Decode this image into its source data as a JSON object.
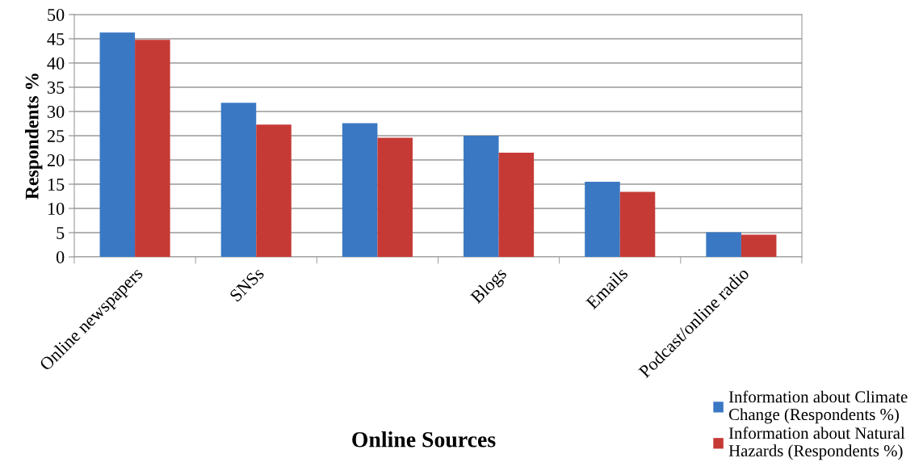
{
  "chart_data": {
    "type": "bar",
    "xlabel": "Online Sources",
    "ylabel": "Respondents %",
    "categories": [
      "Online newspapers",
      "SNSs",
      null,
      "Blogs",
      "Emails",
      "Podcast/online radio"
    ],
    "series": [
      {
        "name": "Information about Climate Change (Respondents %)",
        "color": "#3a78c4",
        "values": [
          46.3,
          31.8,
          27.6,
          25.0,
          15.5,
          5.1
        ]
      },
      {
        "name": "Information about Natural Hazards (Respondents %)",
        "color": "#c63a36",
        "values": [
          44.8,
          27.3,
          24.6,
          21.5,
          13.4,
          4.6
        ]
      }
    ],
    "ylim": [
      0,
      50
    ],
    "yticks": [
      0,
      5,
      10,
      15,
      20,
      25,
      30,
      35,
      40,
      45,
      50
    ],
    "grid": "y",
    "legend": "bottom right"
  }
}
